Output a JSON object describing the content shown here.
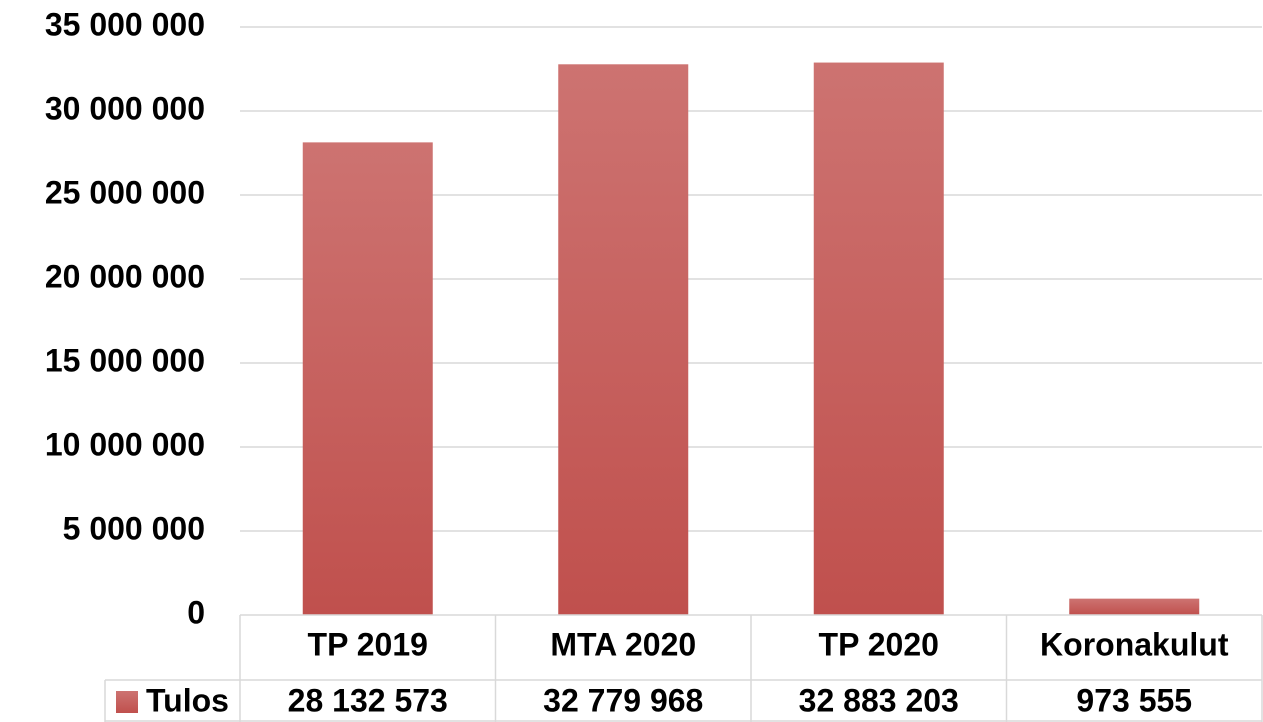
{
  "chart_data": {
    "type": "bar",
    "categories": [
      "TP 2019",
      "MTA 2020",
      "TP 2020",
      "Koronakulut"
    ],
    "series": [
      {
        "name": "Tulos",
        "color": "#c0504d",
        "values": [
          28132573,
          32779968,
          32883203,
          973555
        ],
        "value_labels": [
          "28 132 573",
          "32 779 968",
          "32 883 203",
          "973 555"
        ]
      }
    ],
    "ylim": [
      0,
      35000000
    ],
    "yticks": [
      0,
      {
        "value": 5000000,
        "label": "5 000 000"
      },
      {
        "value": 10000000,
        "label": "10 000 000"
      },
      {
        "value": 15000000,
        "label": "15 000 000"
      },
      {
        "value": 20000000,
        "label": "20 000 000"
      },
      {
        "value": 25000000,
        "label": "25 000 000"
      },
      {
        "value": 30000000,
        "label": "30 000 000"
      },
      {
        "value": 35000000,
        "label": "35 000 000"
      }
    ],
    "grid": true,
    "data_table": true
  }
}
